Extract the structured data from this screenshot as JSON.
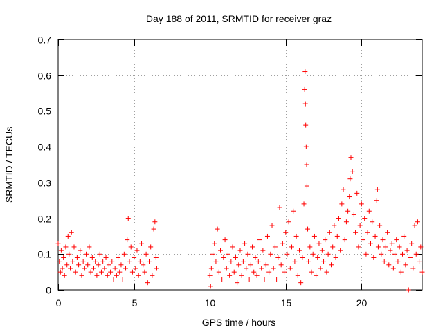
{
  "chart_data": {
    "type": "scatter",
    "title": "Day 188 of 2011, SRMTID for receiver graz",
    "xlabel": "GPS time / hours",
    "ylabel": "SRMTID / TECUs",
    "xlim": [
      0,
      24
    ],
    "ylim": [
      0,
      0.7
    ],
    "x_ticks": [
      0,
      5,
      10,
      15,
      20
    ],
    "y_ticks": [
      0,
      0.1,
      0.2,
      0.3,
      0.4,
      0.5,
      0.6,
      0.7
    ],
    "grid": true,
    "marker": "+",
    "color": "#ff0000",
    "series": [
      {
        "name": "graz",
        "points": [
          [
            0.0,
            0.13
          ],
          [
            0.08,
            0.08
          ],
          [
            0.15,
            0.05
          ],
          [
            0.2,
            0.11
          ],
          [
            0.28,
            0.06
          ],
          [
            0.35,
            0.09
          ],
          [
            0.42,
            0.04
          ],
          [
            0.5,
            0.12
          ],
          [
            0.58,
            0.07
          ],
          [
            0.65,
            0.15
          ],
          [
            0.72,
            0.1
          ],
          [
            0.8,
            0.06
          ],
          [
            0.88,
            0.16
          ],
          [
            0.95,
            0.08
          ],
          [
            1.05,
            0.12
          ],
          [
            1.15,
            0.05
          ],
          [
            1.25,
            0.09
          ],
          [
            1.35,
            0.07
          ],
          [
            1.45,
            0.11
          ],
          [
            1.55,
            0.04
          ],
          [
            1.65,
            0.08
          ],
          [
            1.75,
            0.06
          ],
          [
            1.85,
            0.1
          ],
          [
            1.95,
            0.07
          ],
          [
            2.05,
            0.12
          ],
          [
            2.15,
            0.05
          ],
          [
            2.25,
            0.09
          ],
          [
            2.35,
            0.06
          ],
          [
            2.45,
            0.08
          ],
          [
            2.55,
            0.04
          ],
          [
            2.65,
            0.07
          ],
          [
            2.75,
            0.1
          ],
          [
            2.85,
            0.05
          ],
          [
            2.95,
            0.08
          ],
          [
            3.05,
            0.06
          ],
          [
            3.15,
            0.09
          ],
          [
            3.25,
            0.04
          ],
          [
            3.35,
            0.07
          ],
          [
            3.45,
            0.05
          ],
          [
            3.55,
            0.08
          ],
          [
            3.65,
            0.03
          ],
          [
            3.75,
            0.06
          ],
          [
            3.85,
            0.04
          ],
          [
            3.95,
            0.09
          ],
          [
            4.05,
            0.05
          ],
          [
            4.15,
            0.07
          ],
          [
            4.25,
            0.03
          ],
          [
            4.35,
            0.1
          ],
          [
            4.45,
            0.06
          ],
          [
            4.55,
            0.14
          ],
          [
            4.62,
            0.2
          ],
          [
            4.7,
            0.08
          ],
          [
            4.8,
            0.12
          ],
          [
            4.9,
            0.05
          ],
          [
            5.0,
            0.09
          ],
          [
            5.1,
            0.06
          ],
          [
            5.2,
            0.11
          ],
          [
            5.3,
            0.04
          ],
          [
            5.4,
            0.08
          ],
          [
            5.5,
            0.13
          ],
          [
            5.6,
            0.07
          ],
          [
            5.7,
            0.05
          ],
          [
            5.8,
            0.1
          ],
          [
            5.9,
            0.02
          ],
          [
            6.0,
            0.08
          ],
          [
            6.1,
            0.12
          ],
          [
            6.2,
            0.04
          ],
          [
            6.3,
            0.17
          ],
          [
            6.38,
            0.19
          ],
          [
            6.45,
            0.09
          ],
          [
            6.5,
            0.06
          ],
          [
            10.0,
            0.04
          ],
          [
            10.05,
            0.01
          ],
          [
            10.1,
            0.06
          ],
          [
            10.2,
            0.1
          ],
          [
            10.3,
            0.13
          ],
          [
            10.4,
            0.08
          ],
          [
            10.5,
            0.17
          ],
          [
            10.6,
            0.05
          ],
          [
            10.7,
            0.11
          ],
          [
            10.8,
            0.03
          ],
          [
            10.9,
            0.09
          ],
          [
            11.0,
            0.14
          ],
          [
            11.1,
            0.06
          ],
          [
            11.2,
            0.1
          ],
          [
            11.3,
            0.04
          ],
          [
            11.4,
            0.08
          ],
          [
            11.5,
            0.12
          ],
          [
            11.6,
            0.05
          ],
          [
            11.7,
            0.09
          ],
          [
            11.8,
            0.02
          ],
          [
            11.9,
            0.07
          ],
          [
            12.0,
            0.11
          ],
          [
            12.1,
            0.04
          ],
          [
            12.2,
            0.08
          ],
          [
            12.3,
            0.13
          ],
          [
            12.4,
            0.06
          ],
          [
            12.5,
            0.1
          ],
          [
            12.6,
            0.03
          ],
          [
            12.7,
            0.07
          ],
          [
            12.8,
            0.12
          ],
          [
            12.9,
            0.05
          ],
          [
            13.0,
            0.09
          ],
          [
            13.1,
            0.04
          ],
          [
            13.2,
            0.08
          ],
          [
            13.3,
            0.14
          ],
          [
            13.4,
            0.06
          ],
          [
            13.5,
            0.11
          ],
          [
            13.6,
            0.03
          ],
          [
            13.7,
            0.07
          ],
          [
            13.8,
            0.15
          ],
          [
            13.9,
            0.05
          ],
          [
            14.0,
            0.1
          ],
          [
            14.1,
            0.18
          ],
          [
            14.2,
            0.06
          ],
          [
            14.3,
            0.12
          ],
          [
            14.4,
            0.03
          ],
          [
            14.5,
            0.09
          ],
          [
            14.6,
            0.23
          ],
          [
            14.7,
            0.07
          ],
          [
            14.8,
            0.13
          ],
          [
            14.9,
            0.05
          ],
          [
            15.0,
            0.16
          ],
          [
            15.1,
            0.1
          ],
          [
            15.2,
            0.19
          ],
          [
            15.3,
            0.06
          ],
          [
            15.4,
            0.12
          ],
          [
            15.5,
            0.22
          ],
          [
            15.6,
            0.08
          ],
          [
            15.7,
            0.15
          ],
          [
            15.8,
            0.04
          ],
          [
            15.9,
            0.11
          ],
          [
            16.0,
            0.02
          ],
          [
            16.1,
            0.09
          ],
          [
            16.2,
            0.24
          ],
          [
            16.25,
            0.56
          ],
          [
            16.28,
            0.61
          ],
          [
            16.3,
            0.52
          ],
          [
            16.32,
            0.46
          ],
          [
            16.35,
            0.4
          ],
          [
            16.38,
            0.35
          ],
          [
            16.4,
            0.29
          ],
          [
            16.45,
            0.17
          ],
          [
            16.5,
            0.08
          ],
          [
            16.6,
            0.12
          ],
          [
            16.7,
            0.05
          ],
          [
            16.8,
            0.1
          ],
          [
            16.9,
            0.15
          ],
          [
            17.0,
            0.04
          ],
          [
            17.1,
            0.09
          ],
          [
            17.2,
            0.13
          ],
          [
            17.3,
            0.06
          ],
          [
            17.4,
            0.11
          ],
          [
            17.5,
            0.08
          ],
          [
            17.6,
            0.14
          ],
          [
            17.7,
            0.05
          ],
          [
            17.8,
            0.1
          ],
          [
            17.9,
            0.16
          ],
          [
            18.0,
            0.07
          ],
          [
            18.1,
            0.12
          ],
          [
            18.2,
            0.18
          ],
          [
            18.3,
            0.09
          ],
          [
            18.4,
            0.15
          ],
          [
            18.5,
            0.2
          ],
          [
            18.6,
            0.11
          ],
          [
            18.7,
            0.24
          ],
          [
            18.8,
            0.28
          ],
          [
            18.9,
            0.14
          ],
          [
            19.0,
            0.19
          ],
          [
            19.1,
            0.22
          ],
          [
            19.2,
            0.26
          ],
          [
            19.25,
            0.31
          ],
          [
            19.3,
            0.37
          ],
          [
            19.4,
            0.33
          ],
          [
            19.5,
            0.21
          ],
          [
            19.6,
            0.16
          ],
          [
            19.7,
            0.27
          ],
          [
            19.8,
            0.12
          ],
          [
            19.9,
            0.18
          ],
          [
            20.0,
            0.24
          ],
          [
            20.1,
            0.14
          ],
          [
            20.2,
            0.2
          ],
          [
            20.3,
            0.1
          ],
          [
            20.4,
            0.16
          ],
          [
            20.5,
            0.22
          ],
          [
            20.6,
            0.13
          ],
          [
            20.7,
            0.19
          ],
          [
            20.8,
            0.09
          ],
          [
            20.9,
            0.15
          ],
          [
            21.0,
            0.25
          ],
          [
            21.05,
            0.28
          ],
          [
            21.1,
            0.12
          ],
          [
            21.2,
            0.18
          ],
          [
            21.3,
            0.1
          ],
          [
            21.4,
            0.14
          ],
          [
            21.5,
            0.08
          ],
          [
            21.6,
            0.12
          ],
          [
            21.7,
            0.16
          ],
          [
            21.8,
            0.07
          ],
          [
            21.9,
            0.11
          ],
          [
            22.0,
            0.13
          ],
          [
            22.1,
            0.06
          ],
          [
            22.2,
            0.1
          ],
          [
            22.3,
            0.14
          ],
          [
            22.4,
            0.08
          ],
          [
            22.5,
            0.12
          ],
          [
            22.6,
            0.05
          ],
          [
            22.7,
            0.1
          ],
          [
            22.8,
            0.15
          ],
          [
            22.9,
            0.07
          ],
          [
            23.0,
            0.11
          ],
          [
            23.1,
            0.0
          ],
          [
            23.2,
            0.09
          ],
          [
            23.3,
            0.13
          ],
          [
            23.4,
            0.06
          ],
          [
            23.5,
            0.18
          ],
          [
            23.6,
            0.1
          ],
          [
            23.7,
            0.19
          ],
          [
            23.8,
            0.08
          ],
          [
            23.9,
            0.12
          ],
          [
            24.0,
            0.05
          ]
        ]
      }
    ]
  }
}
